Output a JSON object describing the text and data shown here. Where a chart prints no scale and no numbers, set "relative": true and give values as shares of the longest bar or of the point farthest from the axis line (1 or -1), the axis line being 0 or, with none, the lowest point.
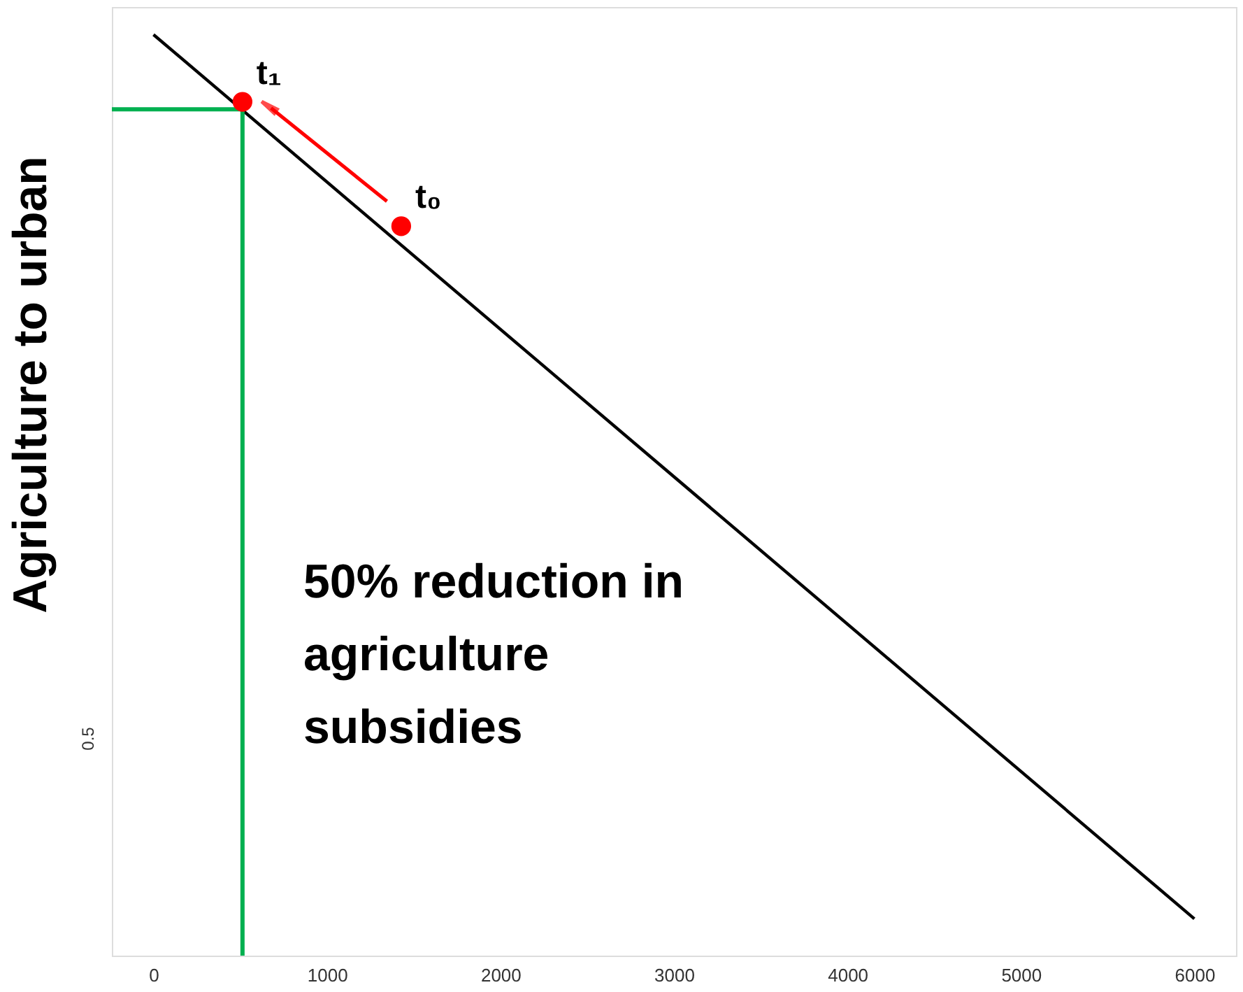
{
  "chart_data": {
    "type": "line",
    "relative": true,
    "ylabel": "Agriculture to urban",
    "xlim": [
      -240,
      6240
    ],
    "xticks": [
      0,
      1000,
      2000,
      3000,
      4000,
      5000,
      6000
    ],
    "grid": false,
    "series": [
      {
        "color": "#000000",
        "line_style": "solid",
        "x": [
          0,
          6000
        ],
        "values": [
          1,
          0.04
        ]
      },
      {
        "color": "#00b050",
        "line_style": "solid",
        "x": [
          -240,
          513,
          513
        ],
        "values": [
          0.919,
          0.919,
          0
        ]
      },
      {
        "type": "scatter",
        "color": "#ff0000",
        "marker": "circle",
        "x": [
          513,
          1428
        ],
        "values": [
          0.927,
          0.792
        ]
      }
    ],
    "annotations": [
      {
        "text": "t₁",
        "x": 513,
        "y": 0.927
      },
      {
        "text": "t₀",
        "x": 1428,
        "y": 0.792
      },
      "50% reduction in agriculture subsidies",
      "0.5"
    ]
  }
}
